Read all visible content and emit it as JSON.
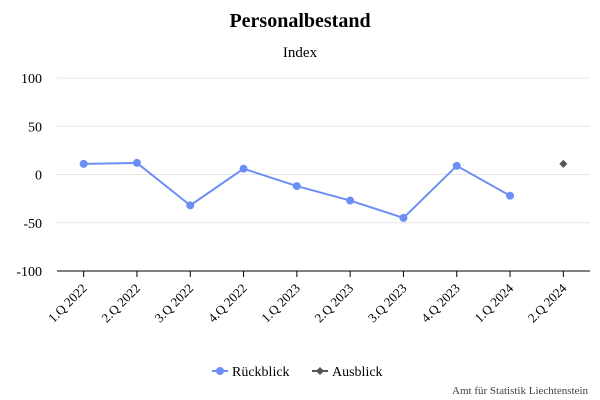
{
  "chart_data": {
    "type": "line",
    "title": "Personalbestand",
    "subtitle": "Index",
    "categories": [
      "1.Q 2022",
      "2.Q 2022",
      "3.Q 2022",
      "4.Q 2022",
      "1.Q 2023",
      "2.Q 2023",
      "3.Q 2023",
      "4.Q 2023",
      "1.Q 2024",
      "2.Q 2024"
    ],
    "ylim": [
      -100,
      100
    ],
    "yticks": [
      100,
      50,
      0,
      -50,
      -100
    ],
    "grid": true,
    "legend_position": "bottom-center",
    "series": [
      {
        "name": "Rückblick",
        "color": "#6d8ff5",
        "marker": "circle",
        "values": [
          11,
          12,
          -32,
          6,
          -12,
          -27,
          -45,
          9,
          -22,
          null
        ]
      },
      {
        "name": "Ausblick",
        "color": "#555555",
        "marker": "diamond",
        "values": [
          null,
          null,
          null,
          null,
          null,
          null,
          null,
          null,
          null,
          11
        ]
      }
    ]
  },
  "credit": "Amt für Statistik Liechtenstein"
}
